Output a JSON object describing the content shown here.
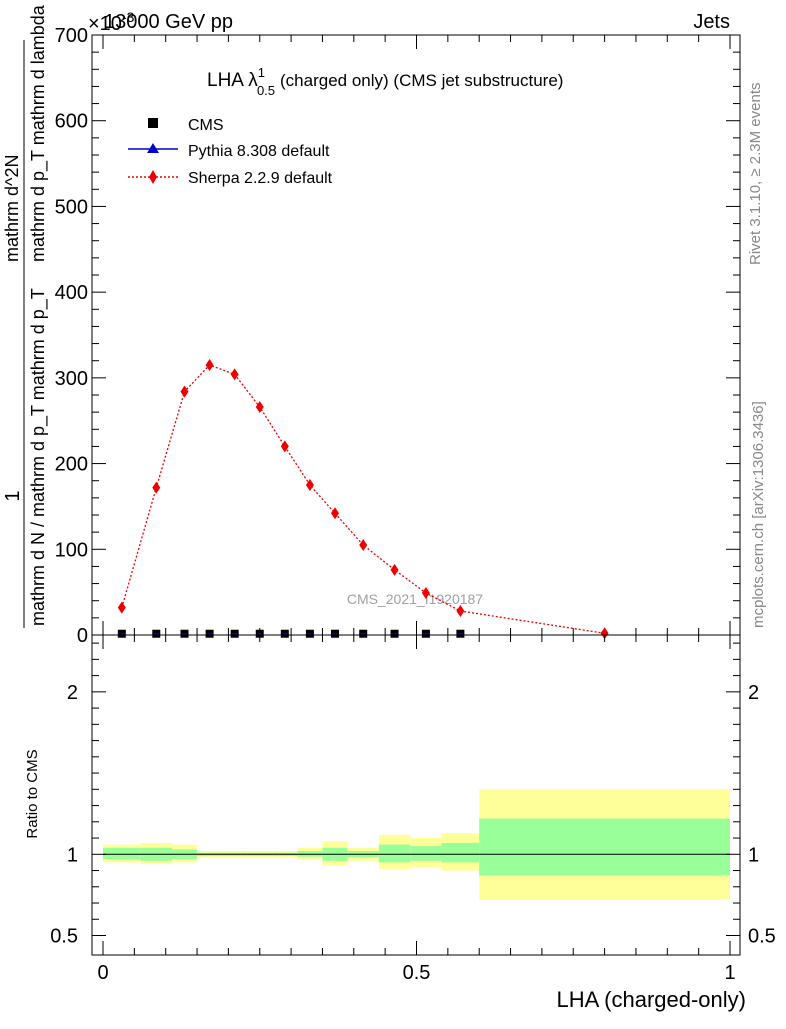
{
  "header": {
    "left": "13000 GeV pp",
    "right": "Jets",
    "exponent": "×10",
    "exponent_power": "-3"
  },
  "side_labels": {
    "rivet": "Rivet 3.1.10, ≥ 2.3M events",
    "mcplots": "mcplots.cern.ch [arXiv:1306.3436]"
  },
  "watermark": "CMS_2021_I1920187",
  "plot_title": {
    "prefix": "LHA λ",
    "sup": "1",
    "sub": "0.5",
    "suffix": "(charged only) (CMS jet substructure)"
  },
  "chart_data": [
    {
      "type": "line",
      "panel": "main",
      "ylabel": {
        "one": "1",
        "denominator": "mathrm d N / mathrm d p_T mathrm d p_T",
        "numerator": "mathrm d^2N",
        "numerator_rest": "mathrm d p_T mathrm d lambda"
      },
      "ylim": [
        0,
        700
      ],
      "xlim": [
        0,
        1
      ],
      "yticks": [
        {
          "v": 0,
          "label": "0"
        },
        {
          "v": 100,
          "label": "100"
        },
        {
          "v": 200,
          "label": "200"
        },
        {
          "v": 300,
          "label": "300"
        },
        {
          "v": 400,
          "label": "400"
        },
        {
          "v": 500,
          "label": "500"
        },
        {
          "v": 600,
          "label": "600"
        },
        {
          "v": 700,
          "label": "700"
        }
      ],
      "legend_position": "top-left",
      "series": [
        {
          "name": "CMS",
          "marker": "square",
          "color": "#000000",
          "x": [
            0.03,
            0.085,
            0.13,
            0.17,
            0.21,
            0.25,
            0.29,
            0.33,
            0.37,
            0.415,
            0.465,
            0.515,
            0.57
          ],
          "y": [
            0.3,
            0.3,
            0.3,
            0.3,
            0.3,
            0.3,
            0.3,
            0.3,
            0.3,
            0.3,
            0.3,
            0.3,
            0.3
          ]
        },
        {
          "name": "Pythia 8.308 default",
          "marker": "triangle",
          "color": "#0000cc",
          "x": [],
          "y": []
        },
        {
          "name": "Sherpa 2.2.9 default",
          "marker": "diamond",
          "color": "#ee0000",
          "linestyle": "dotted",
          "x": [
            0.03,
            0.085,
            0.13,
            0.17,
            0.21,
            0.25,
            0.29,
            0.33,
            0.37,
            0.415,
            0.465,
            0.515,
            0.57,
            0.8
          ],
          "y": [
            32,
            172,
            284,
            315,
            304,
            266,
            220,
            175,
            142,
            105,
            76,
            49,
            28,
            2
          ]
        }
      ]
    },
    {
      "type": "area",
      "panel": "ratio",
      "ylabel": "Ratio to CMS",
      "ylim": [
        0.38,
        2.35
      ],
      "yticks": [
        {
          "v": 0.5,
          "label": "0.5"
        },
        {
          "v": 1,
          "label": "1"
        },
        {
          "v": 2,
          "label": "2"
        }
      ],
      "xticks": [
        {
          "v": 0,
          "label": "0"
        },
        {
          "v": 0.5,
          "label": "0.5"
        },
        {
          "v": 1,
          "label": "1"
        }
      ],
      "xlabel": "LHA (charged-only)",
      "bins": [
        {
          "lo": 0.0,
          "hi": 0.06,
          "y_lo": 0.95,
          "y_hi": 1.06,
          "g_lo": 0.97,
          "g_hi": 1.04
        },
        {
          "lo": 0.06,
          "hi": 0.11,
          "y_lo": 0.94,
          "y_hi": 1.07,
          "g_lo": 0.96,
          "g_hi": 1.04
        },
        {
          "lo": 0.11,
          "hi": 0.15,
          "y_lo": 0.95,
          "y_hi": 1.06,
          "g_lo": 0.97,
          "g_hi": 1.03
        },
        {
          "lo": 0.15,
          "hi": 0.19,
          "y_lo": 0.98,
          "y_hi": 1.02,
          "g_lo": 0.99,
          "g_hi": 1.01
        },
        {
          "lo": 0.19,
          "hi": 0.23,
          "y_lo": 0.98,
          "y_hi": 1.02,
          "g_lo": 0.99,
          "g_hi": 1.01
        },
        {
          "lo": 0.23,
          "hi": 0.27,
          "y_lo": 0.98,
          "y_hi": 1.02,
          "g_lo": 0.99,
          "g_hi": 1.01
        },
        {
          "lo": 0.27,
          "hi": 0.31,
          "y_lo": 0.98,
          "y_hi": 1.02,
          "g_lo": 0.99,
          "g_hi": 1.01
        },
        {
          "lo": 0.31,
          "hi": 0.35,
          "y_lo": 0.97,
          "y_hi": 1.04,
          "g_lo": 0.985,
          "g_hi": 1.02
        },
        {
          "lo": 0.35,
          "hi": 0.39,
          "y_lo": 0.93,
          "y_hi": 1.08,
          "g_lo": 0.96,
          "g_hi": 1.04
        },
        {
          "lo": 0.39,
          "hi": 0.44,
          "y_lo": 0.96,
          "y_hi": 1.04,
          "g_lo": 0.98,
          "g_hi": 1.02
        },
        {
          "lo": 0.44,
          "hi": 0.49,
          "y_lo": 0.91,
          "y_hi": 1.12,
          "g_lo": 0.95,
          "g_hi": 1.06
        },
        {
          "lo": 0.49,
          "hi": 0.54,
          "y_lo": 0.92,
          "y_hi": 1.1,
          "g_lo": 0.96,
          "g_hi": 1.05
        },
        {
          "lo": 0.54,
          "hi": 0.6,
          "y_lo": 0.9,
          "y_hi": 1.13,
          "g_lo": 0.95,
          "g_hi": 1.07
        },
        {
          "lo": 0.6,
          "hi": 1.0,
          "y_lo": 0.72,
          "y_hi": 1.4,
          "g_lo": 0.87,
          "g_hi": 1.22
        }
      ]
    }
  ],
  "colors": {
    "band_outer": "#ffff99",
    "band_inner": "#99ff99",
    "sherpa": "#ee0000",
    "pythia": "#0000cc",
    "cms": "#000000",
    "side_text": "#888888",
    "watermark": "#a0a0a0"
  }
}
